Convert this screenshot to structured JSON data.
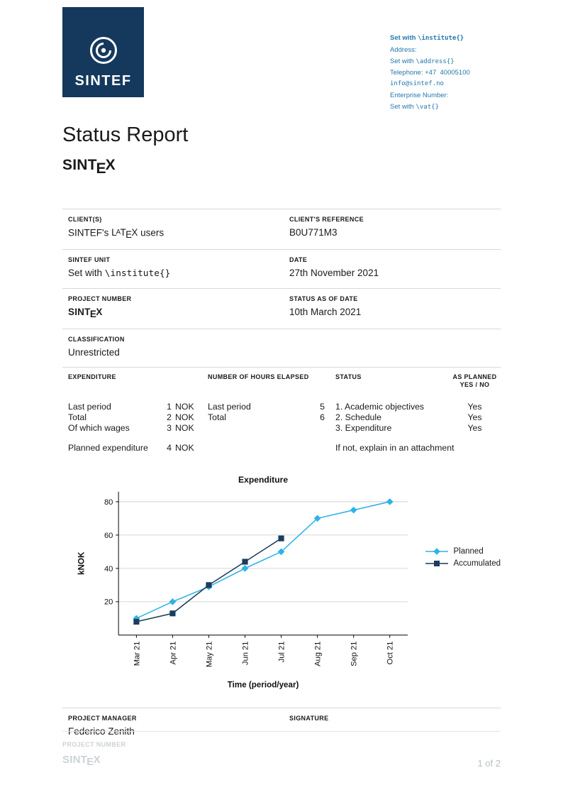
{
  "accent": {
    "navy": "#14395C",
    "link_blue": "#2577AD",
    "planned_blue": "#2EB3E6",
    "accumulated_navy": "#1C3C5C"
  },
  "header": {
    "logo_text": "SINTEF",
    "contact": {
      "institute_prefix": "Set with ",
      "institute_code": "\\institute{}",
      "address_label": "Address:",
      "address_prefix": "Set with ",
      "address_code": "\\address{}",
      "telephone": "Telephone: +47  40005100",
      "email": "info@sintef.no",
      "enterprise_label": "Enterprise Number:",
      "vat_prefix": "Set with ",
      "vat_code": "\\vat{}"
    }
  },
  "title": "Status Report",
  "sintex": {
    "pre": "SINT",
    "e": "E",
    "x": "X"
  },
  "latex": {
    "l": "L",
    "a": "A",
    "t": "T",
    "e": "E",
    "x": "X"
  },
  "fields": {
    "clients_label": "CLIENT(S)",
    "clients_pre": "SINTEF's ",
    "clients_post": " users",
    "clients_ref_label": "CLIENT'S REFERENCE",
    "clients_ref_value": "B0U771M3",
    "unit_label": "SINTEF UNIT",
    "unit_pre": "Set with ",
    "unit_code": "\\institute{}",
    "date_label": "DATE",
    "date_value": "27th November 2021",
    "project_number_label": "PROJECT NUMBER",
    "status_date_label": "STATUS AS OF DATE",
    "status_date_value": "10th March 2021",
    "classification_label": "CLASSIFICATION",
    "classification_value": "Unrestricted"
  },
  "table": {
    "col1_header": "EXPENDITURE",
    "col2_header": "NUMBER OF HOURS ELAPSED",
    "col3_header": "STATUS",
    "col4_header_line1": "AS PLANNED",
    "col4_header_line2": "YES / NO",
    "exp_rows": [
      {
        "label": "Last period",
        "value": "1",
        "unit": "NOK"
      },
      {
        "label": "Total",
        "value": "2",
        "unit": "NOK"
      },
      {
        "label": "Of which wages",
        "value": "3",
        "unit": "NOK"
      }
    ],
    "planned_row": {
      "label": "Planned expenditure",
      "value": "4",
      "unit": "NOK"
    },
    "hours_rows": [
      {
        "label": "Last period",
        "value": "5"
      },
      {
        "label": "Total",
        "value": "6"
      }
    ],
    "status_rows": [
      {
        "label": "1. Academic objectives",
        "as_planned": "Yes"
      },
      {
        "label": "2. Schedule",
        "as_planned": "Yes"
      },
      {
        "label": "3. Expenditure",
        "as_planned": "Yes"
      }
    ],
    "status_note": "If not, explain in an attachment"
  },
  "chart_data": {
    "type": "line",
    "title": "Expenditure",
    "xlabel": "Time (period/year)",
    "ylabel": "kNOK",
    "categories": [
      "Mar 21",
      "Apr 21",
      "May 21",
      "Jun 21",
      "Jul 21",
      "Aug 21",
      "Sep 21",
      "Oct 21"
    ],
    "series": [
      {
        "name": "Planned",
        "color": "#2EB3E6",
        "marker": "diamond",
        "values": [
          10,
          20,
          29,
          40,
          50,
          70,
          75,
          80
        ]
      },
      {
        "name": "Accumulated",
        "color": "#1C3C5C",
        "marker": "square",
        "values": [
          8,
          13,
          30,
          44,
          58
        ]
      }
    ],
    "ylim": [
      0,
      86
    ],
    "yticks": [
      20,
      40,
      60,
      80
    ],
    "grid": true,
    "legend_position": "right"
  },
  "signature": {
    "manager_label": "PROJECT MANAGER",
    "manager_name": "Federico Zenith",
    "signature_label": "SIGNATURE"
  },
  "footer": {
    "project_number_label": "PROJECT NUMBER",
    "page": "1 of 2"
  }
}
